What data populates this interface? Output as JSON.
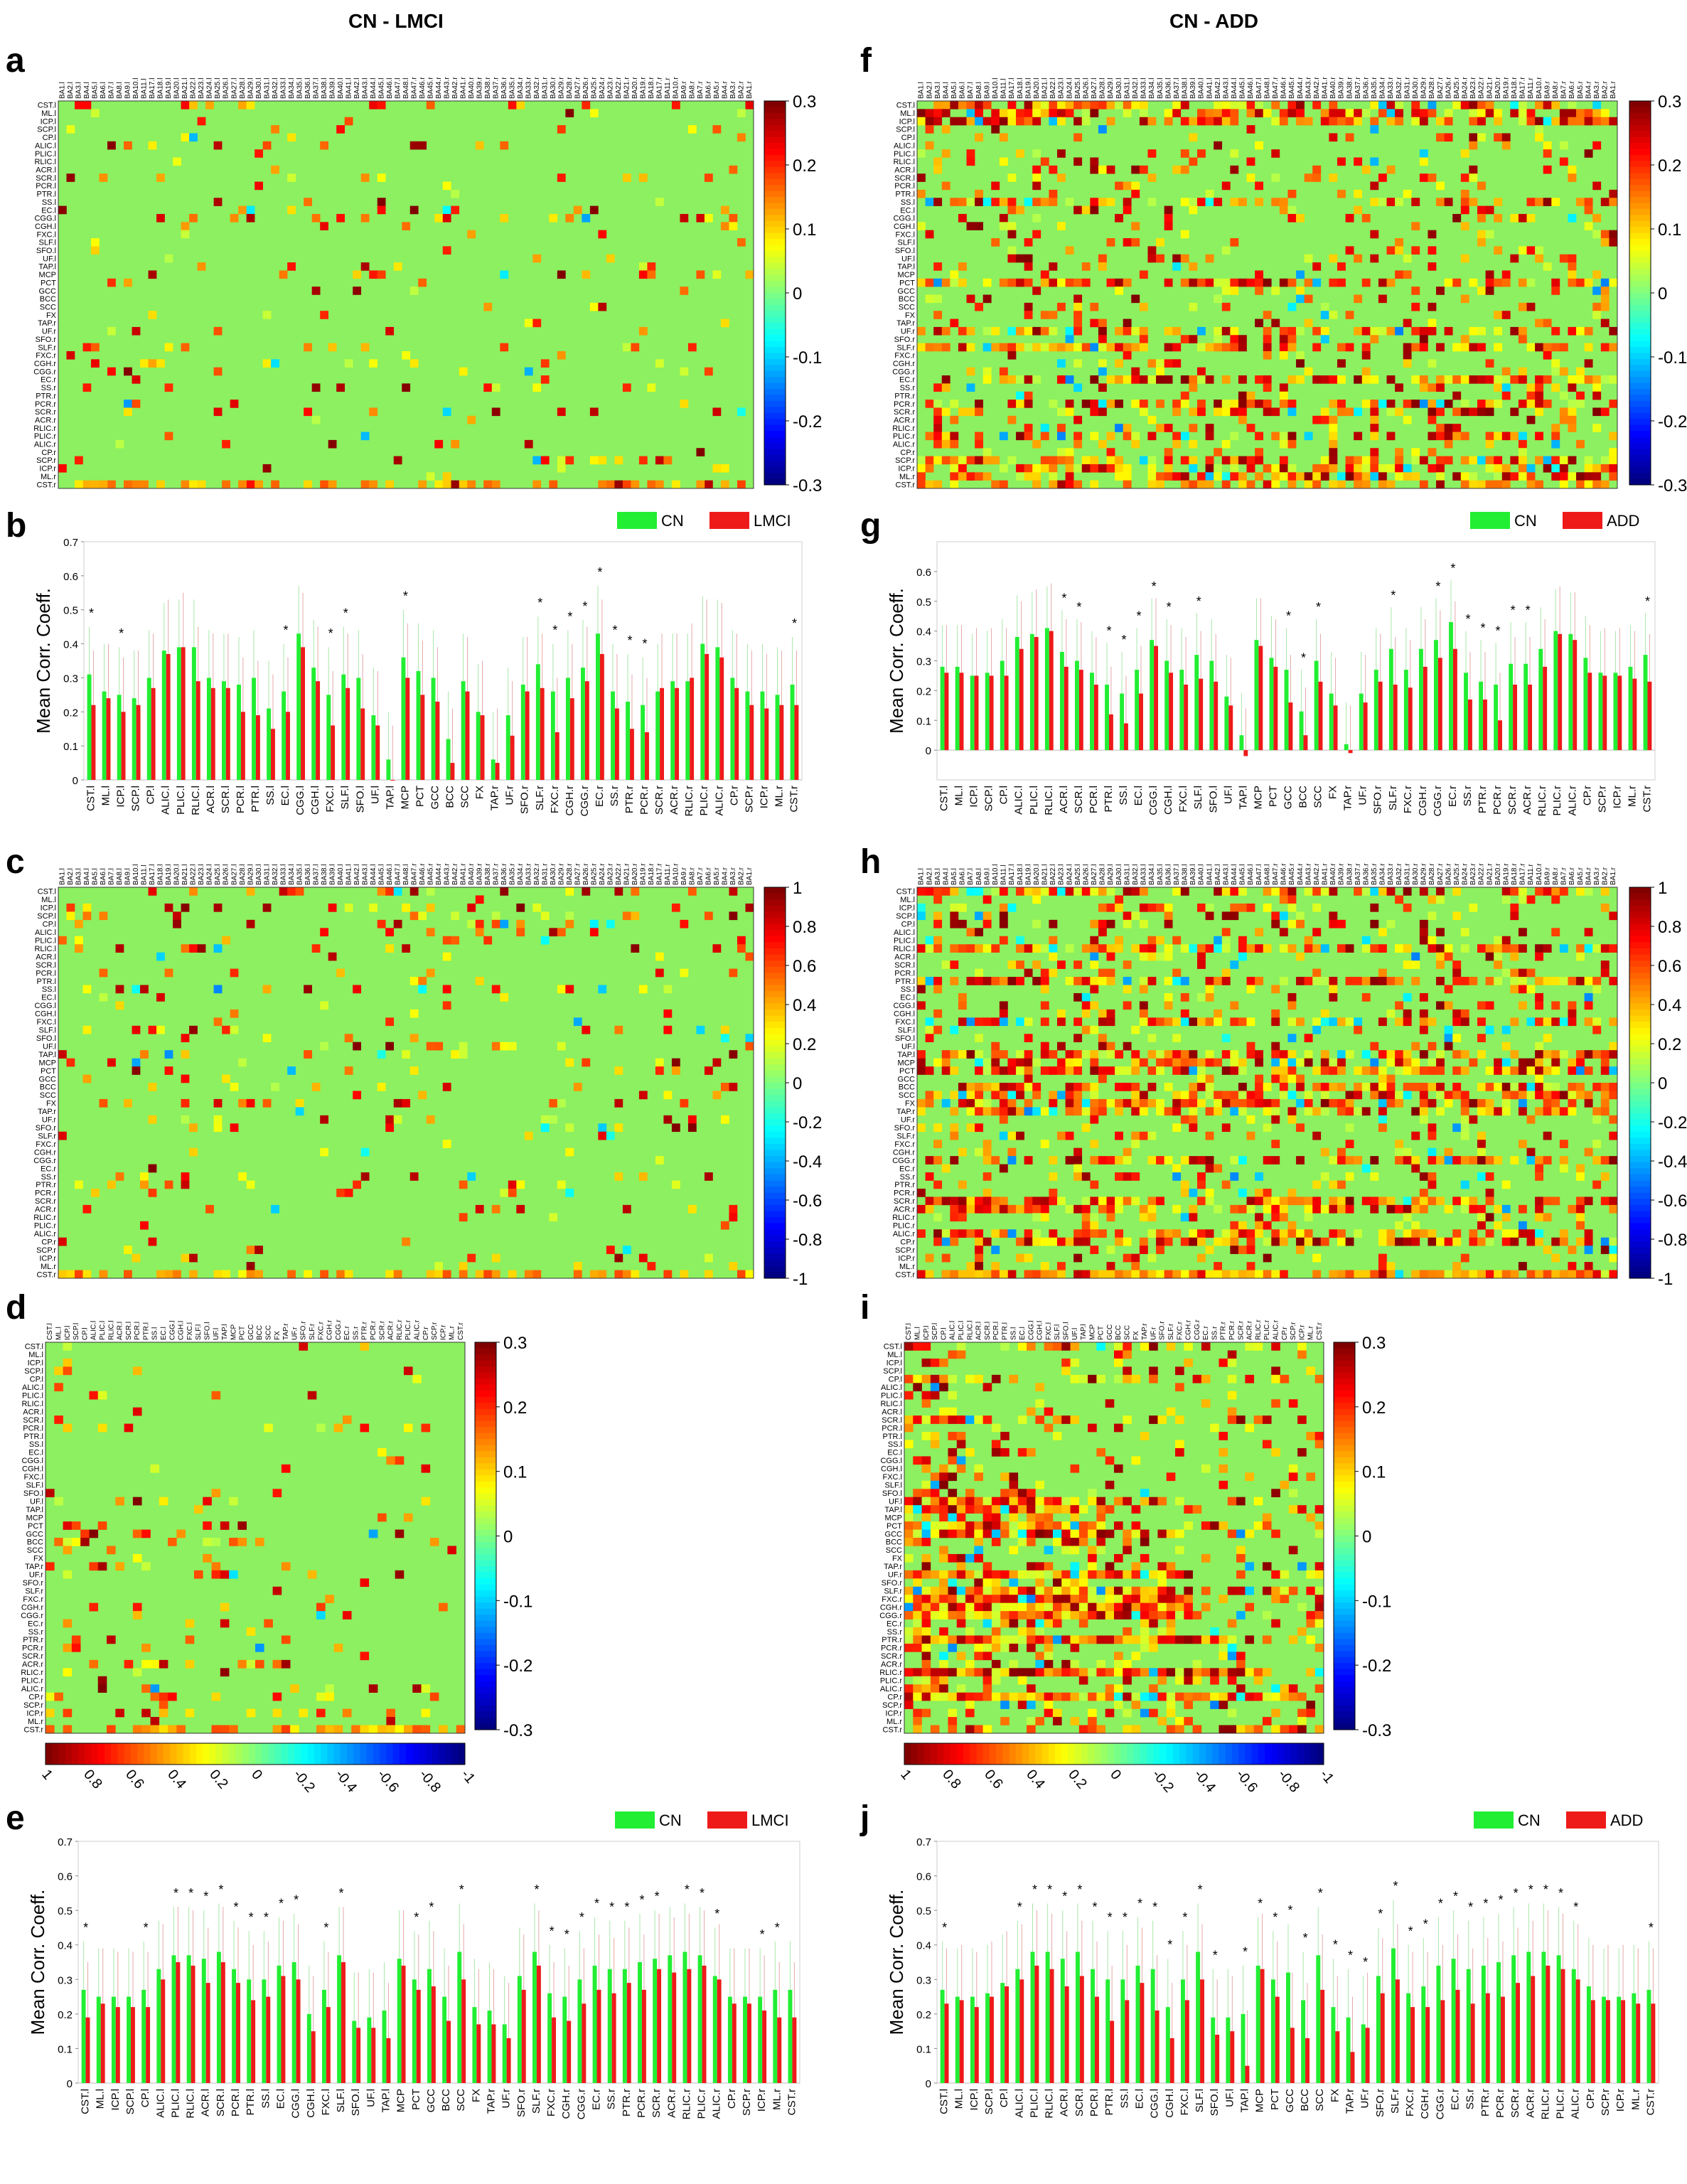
{
  "headers": {
    "left": "CN - LMCI",
    "right": "CN - ADD"
  },
  "panel_labels": [
    "a",
    "b",
    "c",
    "d",
    "e",
    "f",
    "g",
    "h",
    "i",
    "j"
  ],
  "colors": {
    "cn": "#22ee33",
    "patient": "#ee1a1a",
    "background_cell": "#8cf060"
  },
  "tracts": [
    "CST.l",
    "ML.l",
    "ICP.l",
    "SCP.l",
    "CP.l",
    "ALIC.l",
    "PLIC.l",
    "RLIC.l",
    "ACR.l",
    "SCR.l",
    "PCR.l",
    "PTR.l",
    "SS.l",
    "EC.l",
    "CGG.l",
    "CGH.l",
    "FXC.l",
    "SLF.l",
    "SFO.l",
    "UF.l",
    "TAP.l",
    "MCP",
    "PCT",
    "GCC",
    "BCC",
    "SCC",
    "FX",
    "TAP.r",
    "UF.r",
    "SFO.r",
    "SLF.r",
    "FXC.r",
    "CGH.r",
    "CGG.r",
    "EC.r",
    "SS.r",
    "PTR.r",
    "PCR.r",
    "SCR.r",
    "ACR.r",
    "RLIC.r",
    "PLIC.r",
    "ALIC.r",
    "CP.r",
    "SCP.r",
    "ICP.r",
    "ML.r",
    "CST.r"
  ],
  "ba_labels": [
    "BA1.l",
    "BA2.l",
    "BA3.l",
    "BA4.l",
    "BA5.l",
    "BA6.l",
    "BA7.l",
    "BA8.l",
    "BA9.l",
    "BA10.l",
    "BA11.l",
    "BA17.l",
    "BA18.l",
    "BA19.l",
    "BA20.l",
    "BA21.l",
    "BA22.l",
    "BA23.l",
    "BA24.l",
    "BA25.l",
    "BA26.l",
    "BA27.l",
    "BA28.l",
    "BA29.l",
    "BA30.l",
    "BA31.l",
    "BA32.l",
    "BA33.l",
    "BA34.l",
    "BA35.l",
    "BA36.l",
    "BA37.l",
    "BA38.l",
    "BA39.l",
    "BA40.l",
    "BA41.l",
    "BA42.l",
    "BA43.l",
    "BA44.l",
    "BA45.l",
    "BA46.l",
    "BA47.l",
    "BA48.l",
    "BA47.r",
    "BA46.r",
    "BA45.r",
    "BA44.r",
    "BA43.r",
    "BA42.r",
    "BA41.r",
    "BA40.r",
    "BA39.r",
    "BA38.r",
    "BA37.r",
    "BA36.r",
    "BA35.r",
    "BA34.r",
    "BA33.r",
    "BA32.r",
    "BA31.r",
    "BA30.r",
    "BA29.r",
    "BA28.r",
    "BA27.r",
    "BA26.r",
    "BA25.r",
    "BA24.r",
    "BA23.r",
    "BA22.r",
    "BA21.r",
    "BA20.r",
    "BA19.r",
    "BA18.r",
    "BA17.r",
    "BA11.r",
    "BA10.r",
    "BA9.r",
    "BA8.r",
    "BA7.r",
    "BA6.r",
    "BA5.r",
    "BA4.r",
    "BA3.r",
    "BA2.r",
    "BA1.r"
  ],
  "chart_data": [
    {
      "panel": "a",
      "type": "heatmap",
      "rows": "tracts",
      "cols": "ba_labels",
      "colorbar_ticks": [
        "0.3",
        "0.2",
        "0.1",
        "0",
        "-0.1",
        "-0.2",
        "-0.3"
      ],
      "clim": [
        -0.3,
        0.3
      ],
      "density": 0.06,
      "seed": 11
    },
    {
      "panel": "b",
      "type": "bar",
      "ylabel": "Mean Corr. Coeff.",
      "ylim": [
        0,
        0.7
      ],
      "yticks": [
        "0",
        "0.1",
        "0.2",
        "0.3",
        "0.4",
        "0.5",
        "0.6",
        "0.7"
      ],
      "legend": [
        "CN",
        "LMCI"
      ],
      "series": [
        {
          "name": "CN",
          "values": [
            0.31,
            0.26,
            0.25,
            0.24,
            0.3,
            0.38,
            0.39,
            0.39,
            0.3,
            0.29,
            0.28,
            0.3,
            0.21,
            0.26,
            0.43,
            0.33,
            0.25,
            0.31,
            0.3,
            0.19,
            0.06,
            0.36,
            0.32,
            0.3,
            0.12,
            0.29,
            0.2,
            0.06,
            0.19,
            0.28,
            0.34,
            0.26,
            0.3,
            0.33,
            0.43,
            0.26,
            0.23,
            0.22,
            0.26,
            0.29,
            0.29,
            0.4,
            0.39,
            0.3,
            0.26,
            0.26,
            0.25,
            0.28
          ]
        },
        {
          "name": "LMCI",
          "values": [
            0.22,
            0.24,
            0.2,
            0.22,
            0.27,
            0.37,
            0.39,
            0.29,
            0.27,
            0.27,
            0.2,
            0.19,
            0.15,
            0.2,
            0.39,
            0.29,
            0.16,
            0.27,
            0.21,
            0.16,
            0.0,
            0.3,
            0.25,
            0.23,
            0.05,
            0.26,
            0.19,
            0.05,
            0.13,
            0.26,
            0.27,
            0.14,
            0.24,
            0.29,
            0.37,
            0.21,
            0.15,
            0.14,
            0.27,
            0.27,
            0.3,
            0.37,
            0.36,
            0.27,
            0.22,
            0.21,
            0.22,
            0.22
          ]
        }
      ],
      "significant": [
        0,
        2,
        13,
        16,
        17,
        21,
        30,
        31,
        32,
        33,
        34,
        35,
        36,
        37,
        47
      ]
    },
    {
      "panel": "c",
      "type": "heatmap",
      "rows": "tracts",
      "cols": "ba_labels",
      "colorbar_ticks": [
        "1",
        "0.8",
        "0.6",
        "0.4",
        "0.2",
        "0",
        "-0.2",
        "-0.4",
        "-0.6",
        "-0.8",
        "-1"
      ],
      "clim": [
        -1,
        1
      ],
      "density": 0.06,
      "seed": 23
    },
    {
      "panel": "d",
      "type": "heatmap",
      "rows": "tracts",
      "cols": "tracts",
      "colorbar_ticks": [
        "0.3",
        "0.2",
        "0.1",
        "0",
        "-0.1",
        "-0.2",
        "-0.3"
      ],
      "clim": [
        -0.3,
        0.3
      ],
      "density": 0.08,
      "seed": 37,
      "h_colorbar_ticks": [
        "1",
        "0.8",
        "0.6",
        "0.4",
        "0.2",
        "0",
        "-0.2",
        "-0.4",
        "-0.6",
        "-0.8",
        "-1"
      ]
    },
    {
      "panel": "e",
      "type": "bar",
      "ylabel": "Mean Corr. Coeff.",
      "ylim": [
        0,
        0.7
      ],
      "yticks": [
        "0",
        "0.1",
        "0.2",
        "0.3",
        "0.4",
        "0.5",
        "0.6",
        "0.7"
      ],
      "legend": [
        "CN",
        "LMCI"
      ],
      "series": [
        {
          "name": "CN",
          "values": [
            0.27,
            0.25,
            0.25,
            0.25,
            0.27,
            0.33,
            0.37,
            0.37,
            0.36,
            0.38,
            0.33,
            0.3,
            0.3,
            0.34,
            0.35,
            0.2,
            0.27,
            0.37,
            0.18,
            0.19,
            0.21,
            0.36,
            0.3,
            0.33,
            0.25,
            0.38,
            0.22,
            0.21,
            0.17,
            0.31,
            0.38,
            0.26,
            0.25,
            0.3,
            0.34,
            0.33,
            0.33,
            0.35,
            0.36,
            0.37,
            0.38,
            0.37,
            0.31,
            0.25,
            0.25,
            0.25,
            0.27,
            0.27
          ]
        },
        {
          "name": "LMCI",
          "values": [
            0.19,
            0.23,
            0.22,
            0.22,
            0.22,
            0.3,
            0.35,
            0.34,
            0.29,
            0.35,
            0.29,
            0.24,
            0.25,
            0.31,
            0.3,
            0.15,
            0.22,
            0.35,
            0.16,
            0.16,
            0.13,
            0.34,
            0.27,
            0.28,
            0.18,
            0.3,
            0.17,
            0.17,
            0.13,
            0.27,
            0.34,
            0.19,
            0.18,
            0.23,
            0.27,
            0.26,
            0.29,
            0.27,
            0.33,
            0.32,
            0.33,
            0.34,
            0.3,
            0.23,
            0.23,
            0.21,
            0.19,
            0.19
          ]
        }
      ],
      "significant": [
        0,
        4,
        6,
        7,
        8,
        9,
        10,
        11,
        12,
        13,
        14,
        16,
        17,
        22,
        23,
        25,
        30,
        31,
        32,
        33,
        34,
        35,
        36,
        37,
        38,
        40,
        41,
        42,
        45,
        46
      ]
    },
    {
      "panel": "f",
      "type": "heatmap",
      "rows": "tracts",
      "cols": "ba_labels",
      "colorbar_ticks": [
        "0.3",
        "0.2",
        "0.1",
        "0",
        "-0.1",
        "-0.2",
        "-0.3"
      ],
      "clim": [
        -0.3,
        0.3
      ],
      "density": 0.28,
      "seed": 51
    },
    {
      "panel": "g",
      "type": "bar",
      "ylabel": "Mean Corr. Coeff.",
      "ylim": [
        -0.1,
        0.7
      ],
      "yticks": [
        "0",
        "0.1",
        "0.2",
        "0.3",
        "0.4",
        "0.5",
        "0.6"
      ],
      "legend": [
        "CN",
        "ADD"
      ],
      "series": [
        {
          "name": "CN",
          "values": [
            0.28,
            0.28,
            0.25,
            0.26,
            0.3,
            0.38,
            0.39,
            0.41,
            0.33,
            0.3,
            0.26,
            0.22,
            0.19,
            0.27,
            0.37,
            0.3,
            0.27,
            0.32,
            0.3,
            0.18,
            0.05,
            0.37,
            0.31,
            0.27,
            0.13,
            0.3,
            0.19,
            0.02,
            0.19,
            0.27,
            0.34,
            0.27,
            0.34,
            0.37,
            0.43,
            0.26,
            0.23,
            0.22,
            0.29,
            0.29,
            0.34,
            0.4,
            0.39,
            0.31,
            0.26,
            0.26,
            0.28,
            0.32
          ]
        },
        {
          "name": "ADD",
          "values": [
            0.26,
            0.26,
            0.25,
            0.25,
            0.25,
            0.34,
            0.38,
            0.4,
            0.28,
            0.27,
            0.22,
            0.12,
            0.09,
            0.19,
            0.35,
            0.26,
            0.22,
            0.24,
            0.23,
            0.15,
            -0.02,
            0.35,
            0.28,
            0.16,
            0.05,
            0.23,
            0.15,
            -0.01,
            0.16,
            0.23,
            0.22,
            0.21,
            0.28,
            0.31,
            0.34,
            0.17,
            0.17,
            0.1,
            0.22,
            0.22,
            0.28,
            0.39,
            0.37,
            0.26,
            0.25,
            0.25,
            0.24,
            0.23
          ]
        }
      ],
      "significant": [
        8,
        9,
        11,
        12,
        13,
        14,
        15,
        17,
        23,
        24,
        25,
        30,
        33,
        34,
        35,
        36,
        37,
        38,
        39,
        47
      ]
    },
    {
      "panel": "h",
      "type": "heatmap",
      "rows": "tracts",
      "cols": "ba_labels",
      "colorbar_ticks": [
        "1",
        "0.8",
        "0.6",
        "0.4",
        "0.2",
        "0",
        "-0.2",
        "-0.4",
        "-0.6",
        "-0.8",
        "-1"
      ],
      "clim": [
        -1,
        1
      ],
      "density": 0.3,
      "seed": 67
    },
    {
      "panel": "i",
      "type": "heatmap",
      "rows": "tracts",
      "cols": "tracts",
      "colorbar_ticks": [
        "0.3",
        "0.2",
        "0.1",
        "0",
        "-0.1",
        "-0.2",
        "-0.3"
      ],
      "clim": [
        -0.3,
        0.3
      ],
      "density": 0.55,
      "seed": 79,
      "h_colorbar_ticks": [
        "1",
        "0.8",
        "0.6",
        "0.4",
        "0.2",
        "0",
        "-0.2",
        "-0.4",
        "-0.6",
        "-0.8",
        "-1"
      ]
    },
    {
      "panel": "j",
      "type": "bar",
      "ylabel": "Mean Corr. Coeff.",
      "ylim": [
        0,
        0.7
      ],
      "yticks": [
        "0",
        "0.1",
        "0.2",
        "0.3",
        "0.4",
        "0.5",
        "0.6",
        "0.7"
      ],
      "legend": [
        "CN",
        "ADD"
      ],
      "series": [
        {
          "name": "CN",
          "values": [
            0.27,
            0.25,
            0.25,
            0.26,
            0.29,
            0.33,
            0.38,
            0.38,
            0.36,
            0.38,
            0.33,
            0.3,
            0.3,
            0.34,
            0.33,
            0.22,
            0.3,
            0.38,
            0.19,
            0.19,
            0.2,
            0.34,
            0.3,
            0.32,
            0.24,
            0.37,
            0.22,
            0.19,
            0.17,
            0.31,
            0.39,
            0.26,
            0.28,
            0.34,
            0.36,
            0.33,
            0.34,
            0.35,
            0.37,
            0.38,
            0.38,
            0.37,
            0.33,
            0.28,
            0.25,
            0.25,
            0.26,
            0.27
          ]
        },
        {
          "name": "ADD",
          "values": [
            0.23,
            0.24,
            0.22,
            0.25,
            0.28,
            0.3,
            0.34,
            0.33,
            0.28,
            0.31,
            0.25,
            0.18,
            0.24,
            0.29,
            0.21,
            0.13,
            0.24,
            0.3,
            0.14,
            0.15,
            0.05,
            0.33,
            0.25,
            0.16,
            0.13,
            0.27,
            0.15,
            0.09,
            0.16,
            0.26,
            0.3,
            0.22,
            0.22,
            0.24,
            0.27,
            0.23,
            0.26,
            0.25,
            0.29,
            0.31,
            0.34,
            0.33,
            0.3,
            0.24,
            0.24,
            0.24,
            0.23,
            0.23
          ]
        }
      ],
      "significant": [
        0,
        5,
        6,
        7,
        8,
        9,
        10,
        11,
        12,
        13,
        14,
        15,
        16,
        17,
        18,
        20,
        21,
        22,
        23,
        24,
        25,
        26,
        27,
        28,
        29,
        30,
        31,
        32,
        33,
        34,
        35,
        36,
        37,
        38,
        39,
        40,
        41,
        42,
        47
      ]
    }
  ]
}
